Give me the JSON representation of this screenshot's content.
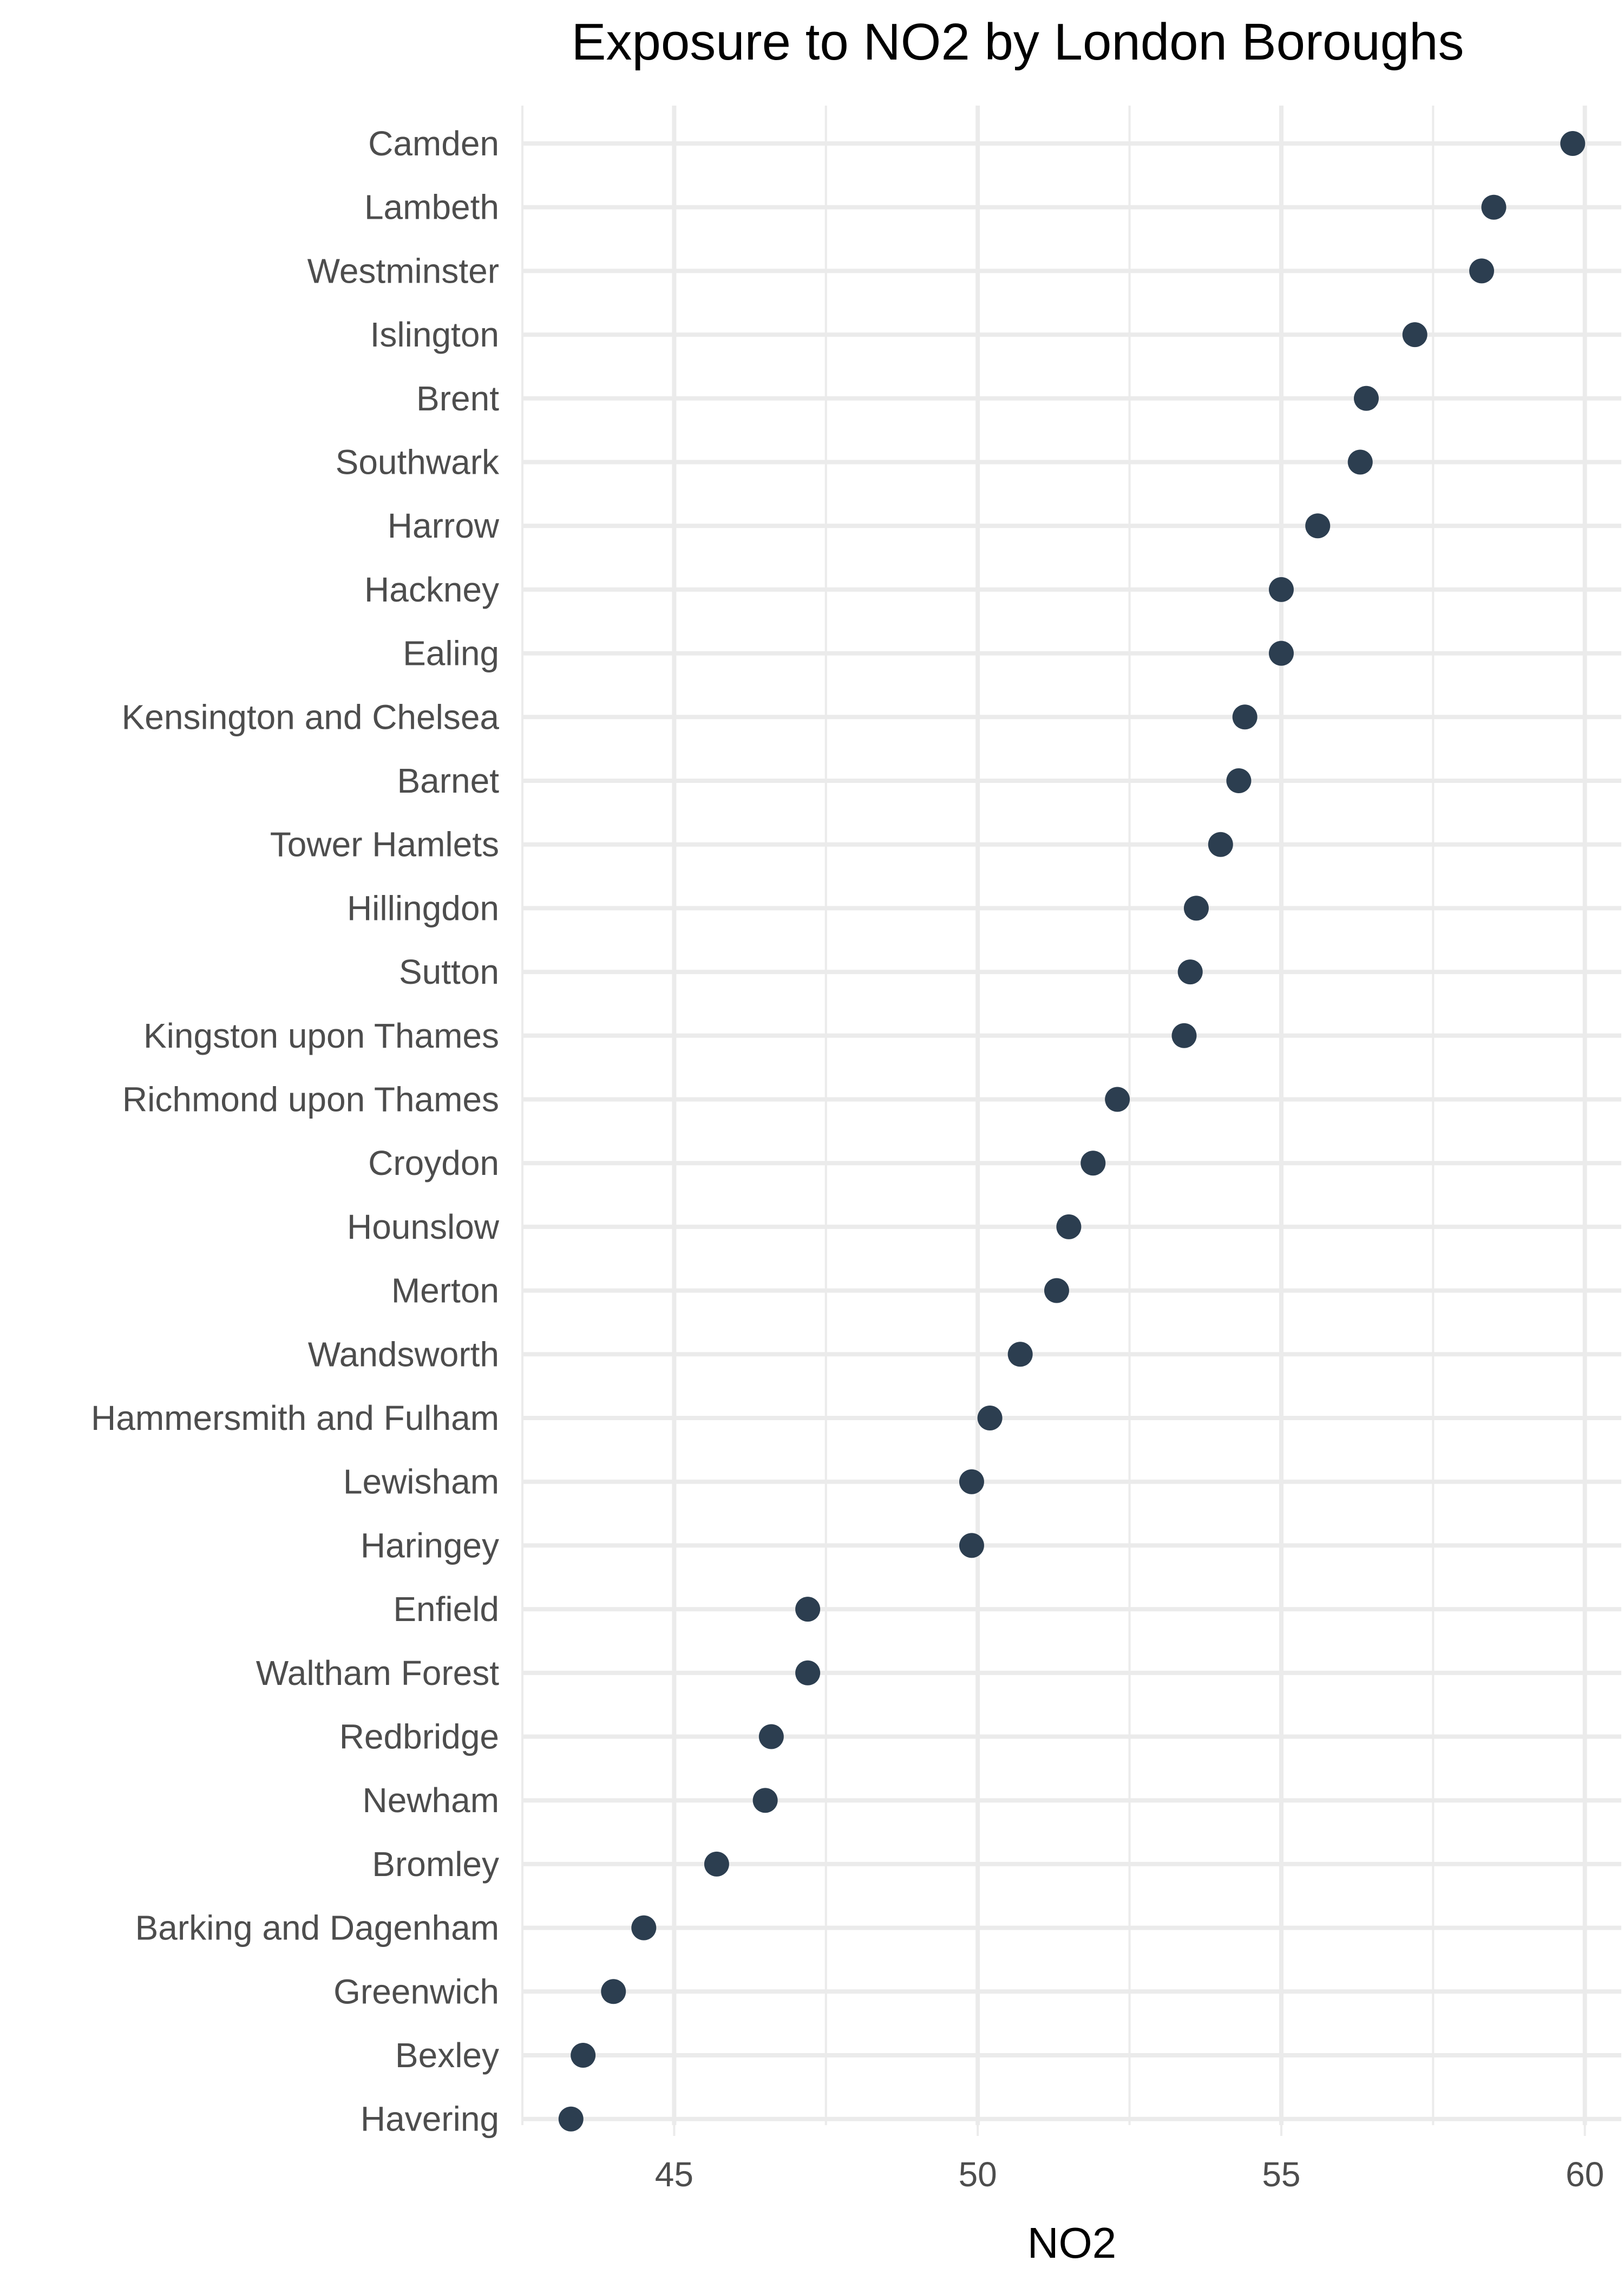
{
  "chart_data": {
    "type": "scatter",
    "title": "Exposure to NO2 by London Boroughs",
    "xlabel": "NO2",
    "ylabel": "",
    "xlim": [
      42.5,
      60.6
    ],
    "x_ticks": [
      45,
      50,
      55,
      60
    ],
    "x_minor_ticks": [
      42.5,
      47.5,
      52.5,
      57.5
    ],
    "grid": true,
    "legend": "none",
    "point_color": "#2c3e50",
    "grid_color": "#ebebeb",
    "categories": [
      "Camden",
      "Lambeth",
      "Westminster",
      "Islington",
      "Brent",
      "Southwark",
      "Harrow",
      "Hackney",
      "Ealing",
      "Kensington and Chelsea",
      "Barnet",
      "Tower Hamlets",
      "Hillingdon",
      "Sutton",
      "Kingston upon Thames",
      "Richmond upon Thames",
      "Croydon",
      "Hounslow",
      "Merton",
      "Wandsworth",
      "Hammersmith and Fulham",
      "Lewisham",
      "Haringey",
      "Enfield",
      "Waltham Forest",
      "Redbridge",
      "Newham",
      "Bromley",
      "Barking and Dagenham",
      "Greenwich",
      "Bexley",
      "Havering"
    ],
    "values": [
      59.8,
      58.5,
      58.3,
      57.2,
      56.4,
      56.3,
      55.6,
      55.0,
      55.0,
      54.4,
      54.3,
      54.0,
      53.6,
      53.5,
      53.4,
      52.3,
      51.9,
      51.5,
      51.3,
      50.7,
      50.2,
      49.9,
      49.9,
      47.2,
      47.2,
      46.6,
      46.5,
      45.7,
      44.5,
      44.0,
      43.5,
      43.3
    ]
  }
}
